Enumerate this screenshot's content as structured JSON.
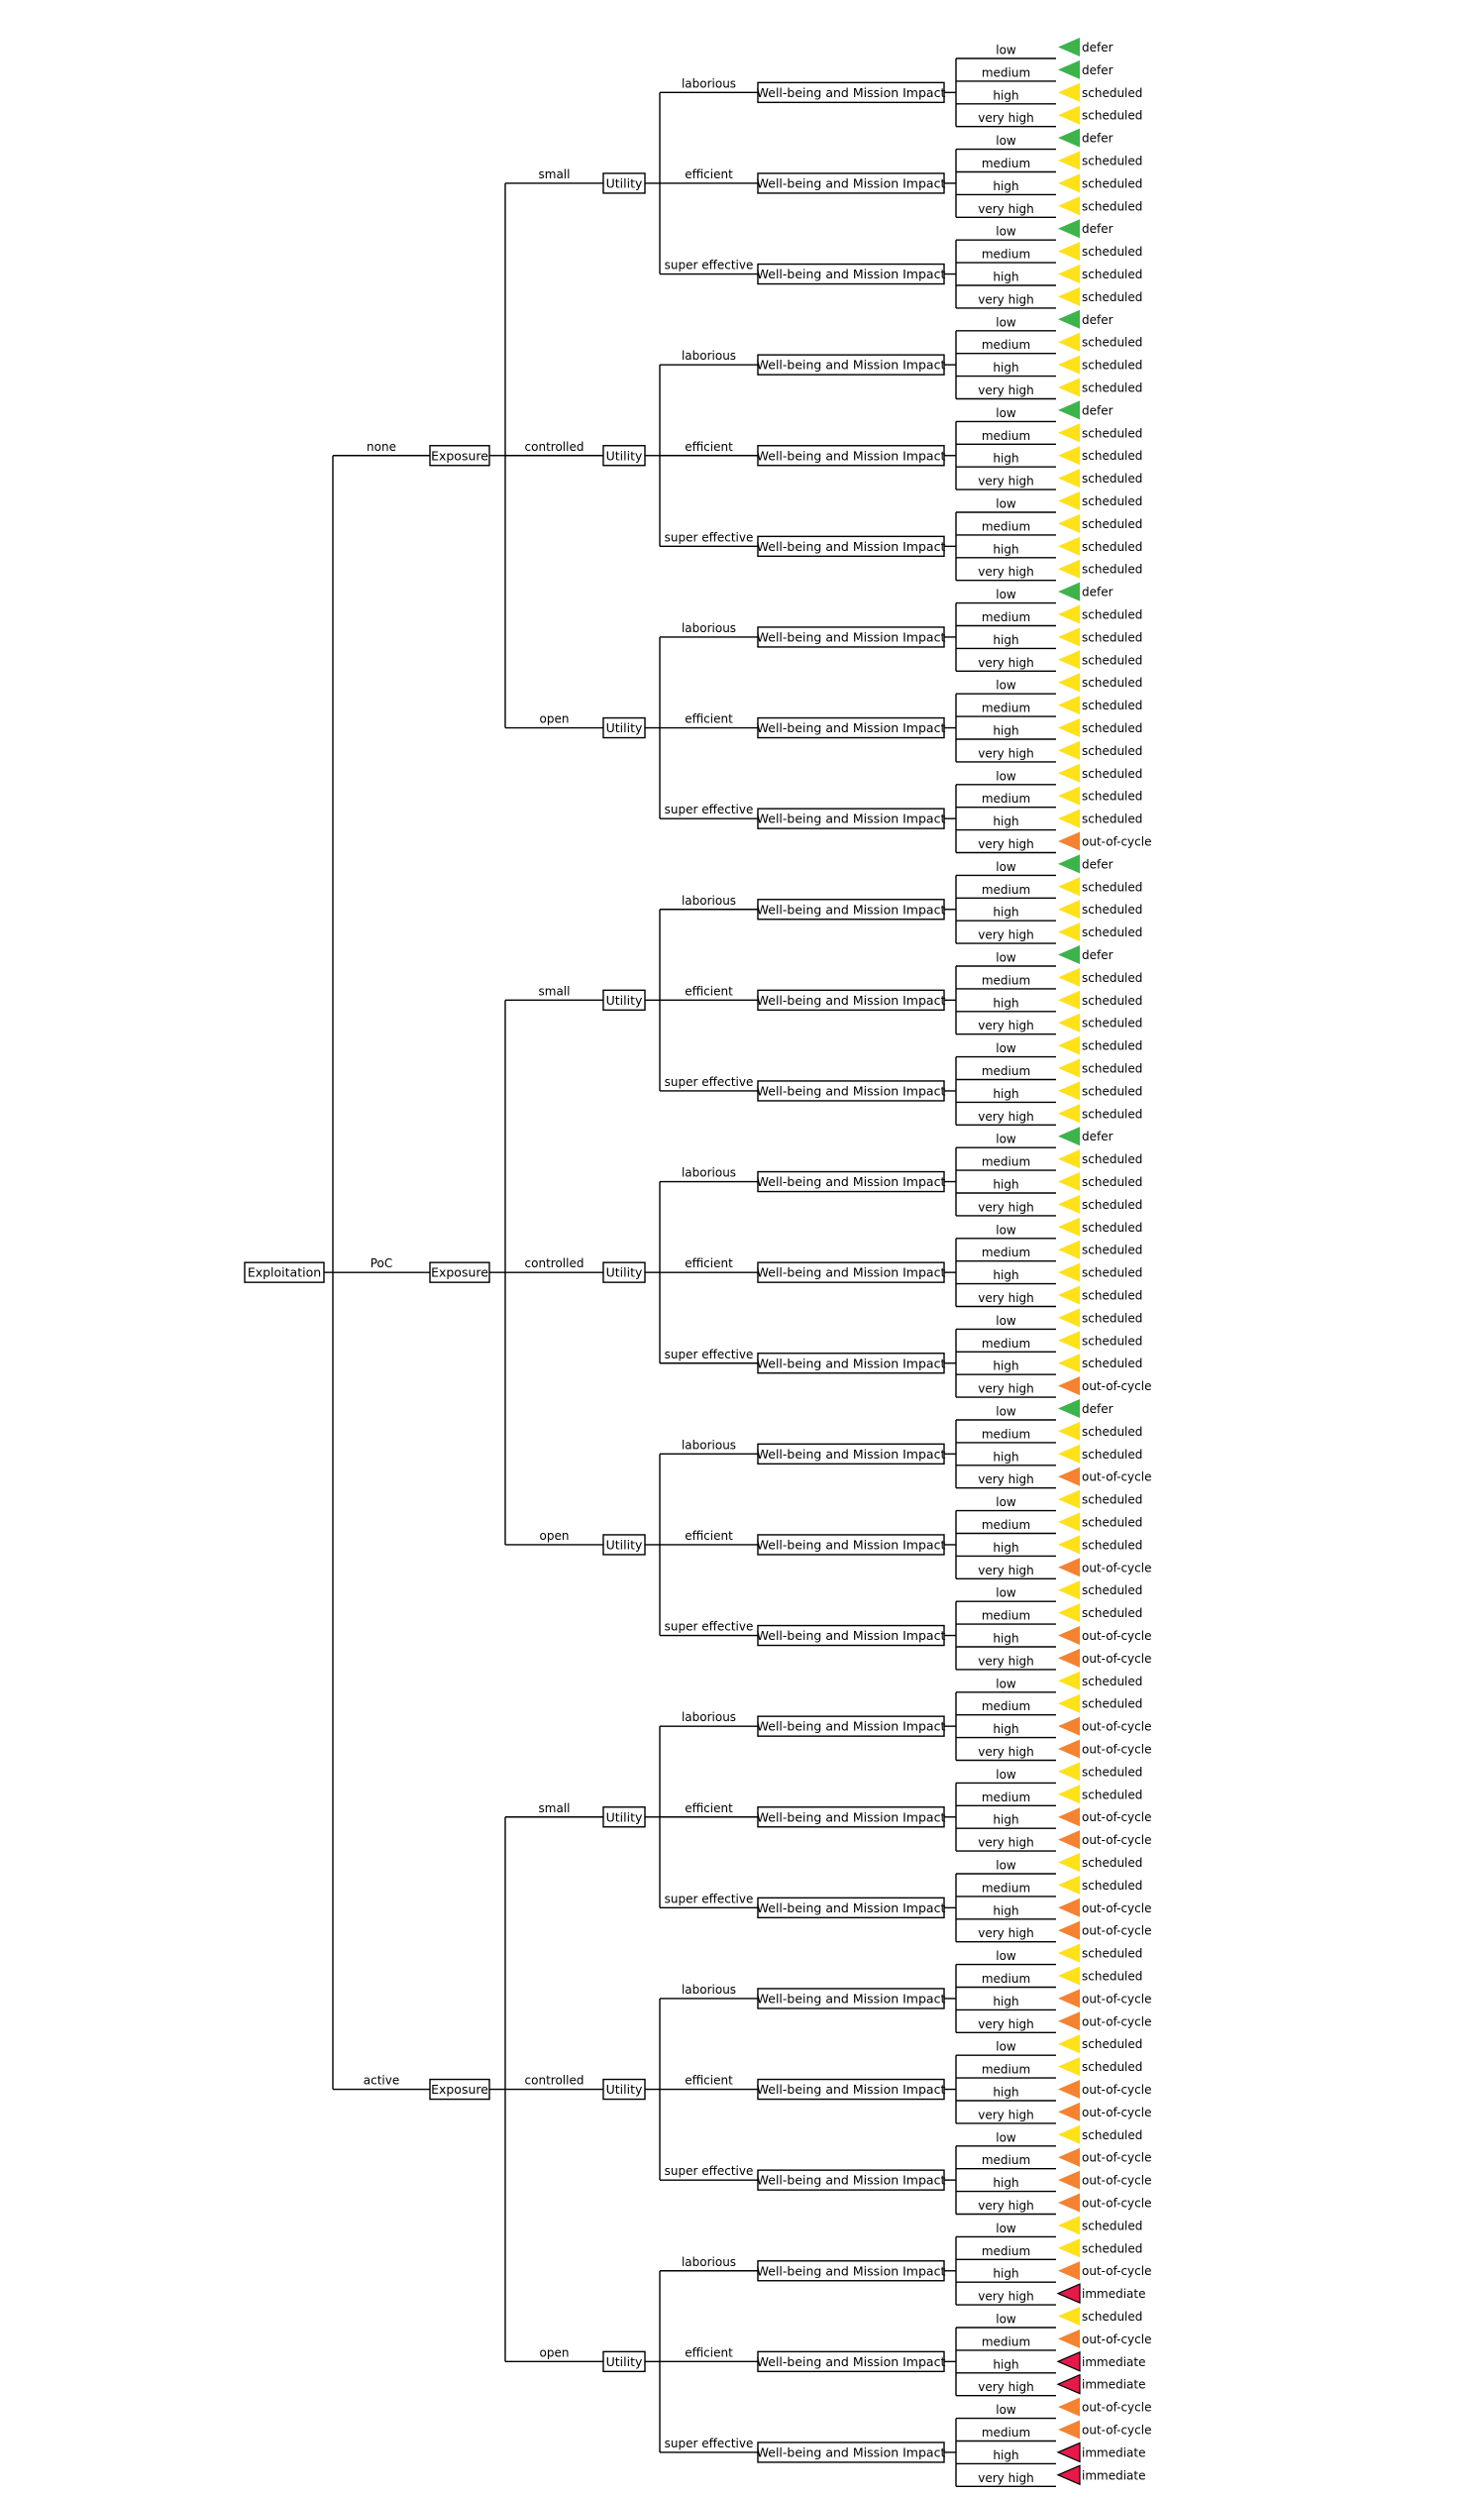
{
  "levels": [
    "Exploitation",
    "Exposure",
    "Utility",
    "Well-being and Mission Impact"
  ],
  "branches": {
    "exploitation": [
      "none",
      "PoC",
      "active"
    ],
    "exposure": [
      "small",
      "controlled",
      "open"
    ],
    "utility": [
      "laborious",
      "efficient",
      "super effective"
    ],
    "impact": [
      "low",
      "medium",
      "high",
      "very high"
    ]
  },
  "outcomes": {
    "defer": "#3cb44b",
    "scheduled": "#ffe119",
    "out-of-cycle": "#f58231",
    "immediate": "#e6194b"
  },
  "decisions": [
    "defer",
    "defer",
    "scheduled",
    "scheduled",
    "defer",
    "scheduled",
    "scheduled",
    "scheduled",
    "defer",
    "scheduled",
    "scheduled",
    "scheduled",
    "defer",
    "scheduled",
    "scheduled",
    "scheduled",
    "defer",
    "scheduled",
    "scheduled",
    "scheduled",
    "scheduled",
    "scheduled",
    "scheduled",
    "scheduled",
    "defer",
    "scheduled",
    "scheduled",
    "scheduled",
    "scheduled",
    "scheduled",
    "scheduled",
    "scheduled",
    "scheduled",
    "scheduled",
    "scheduled",
    "out-of-cycle",
    "defer",
    "scheduled",
    "scheduled",
    "scheduled",
    "defer",
    "scheduled",
    "scheduled",
    "scheduled",
    "scheduled",
    "scheduled",
    "scheduled",
    "scheduled",
    "defer",
    "scheduled",
    "scheduled",
    "scheduled",
    "scheduled",
    "scheduled",
    "scheduled",
    "scheduled",
    "scheduled",
    "scheduled",
    "scheduled",
    "out-of-cycle",
    "defer",
    "scheduled",
    "scheduled",
    "out-of-cycle",
    "scheduled",
    "scheduled",
    "scheduled",
    "out-of-cycle",
    "scheduled",
    "scheduled",
    "out-of-cycle",
    "out-of-cycle",
    "scheduled",
    "scheduled",
    "out-of-cycle",
    "out-of-cycle",
    "scheduled",
    "scheduled",
    "out-of-cycle",
    "out-of-cycle",
    "scheduled",
    "scheduled",
    "out-of-cycle",
    "out-of-cycle",
    "scheduled",
    "scheduled",
    "out-of-cycle",
    "out-of-cycle",
    "scheduled",
    "scheduled",
    "out-of-cycle",
    "out-of-cycle",
    "scheduled",
    "out-of-cycle",
    "out-of-cycle",
    "out-of-cycle",
    "scheduled",
    "scheduled",
    "out-of-cycle",
    "immediate",
    "scheduled",
    "out-of-cycle",
    "immediate",
    "immediate",
    "out-of-cycle",
    "out-of-cycle",
    "immediate",
    "immediate"
  ]
}
